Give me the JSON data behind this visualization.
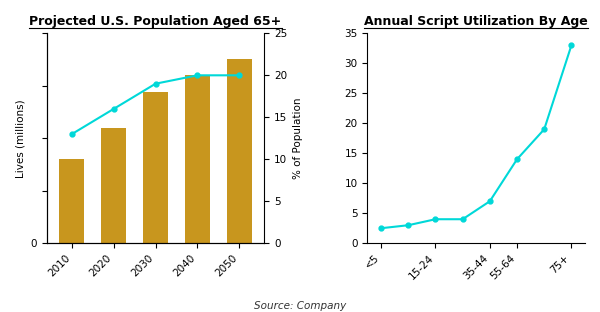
{
  "left_title": "Projected U.S. Population Aged 65+",
  "right_title": "Annual Script Utilization By Age",
  "source": "Source: Company",
  "bar_years": [
    2010,
    2020,
    2030,
    2040,
    2050
  ],
  "bar_values": [
    40,
    55,
    72,
    80,
    88
  ],
  "bar_color": "#C8961E",
  "line_years": [
    2010,
    2020,
    2030,
    2040,
    2050
  ],
  "line_pct": [
    13,
    16,
    19,
    20,
    20
  ],
  "left_ylabel": "Lives (millions)",
  "left_ylim": [
    0,
    100
  ],
  "left_yticks": [
    0,
    25,
    50,
    75,
    100
  ],
  "left_yticklabels": [
    "0",
    "",
    "",
    "",
    ""
  ],
  "right_ylabel": "% of Population",
  "right_ylim": [
    0,
    25
  ],
  "right_yticks": [
    0,
    5,
    10,
    15,
    20,
    25
  ],
  "age_x": [
    0,
    1,
    2,
    3,
    4,
    5,
    6,
    7
  ],
  "age_values": [
    2.5,
    3.0,
    4.0,
    4.0,
    7.0,
    14.0,
    19.0,
    33.0
  ],
  "age_ylim": [
    0,
    35
  ],
  "age_yticks": [
    0,
    5,
    10,
    15,
    20,
    25,
    30,
    35
  ],
  "age_tick_positions": [
    0,
    2,
    4,
    5,
    7
  ],
  "age_tick_labels": [
    "<5",
    "15-24",
    "35-44",
    "55-64",
    "75+"
  ],
  "cyan_color": "#00D8D8",
  "title_fontsize": 9,
  "axis_fontsize": 7.5,
  "tick_fontsize": 7.5
}
